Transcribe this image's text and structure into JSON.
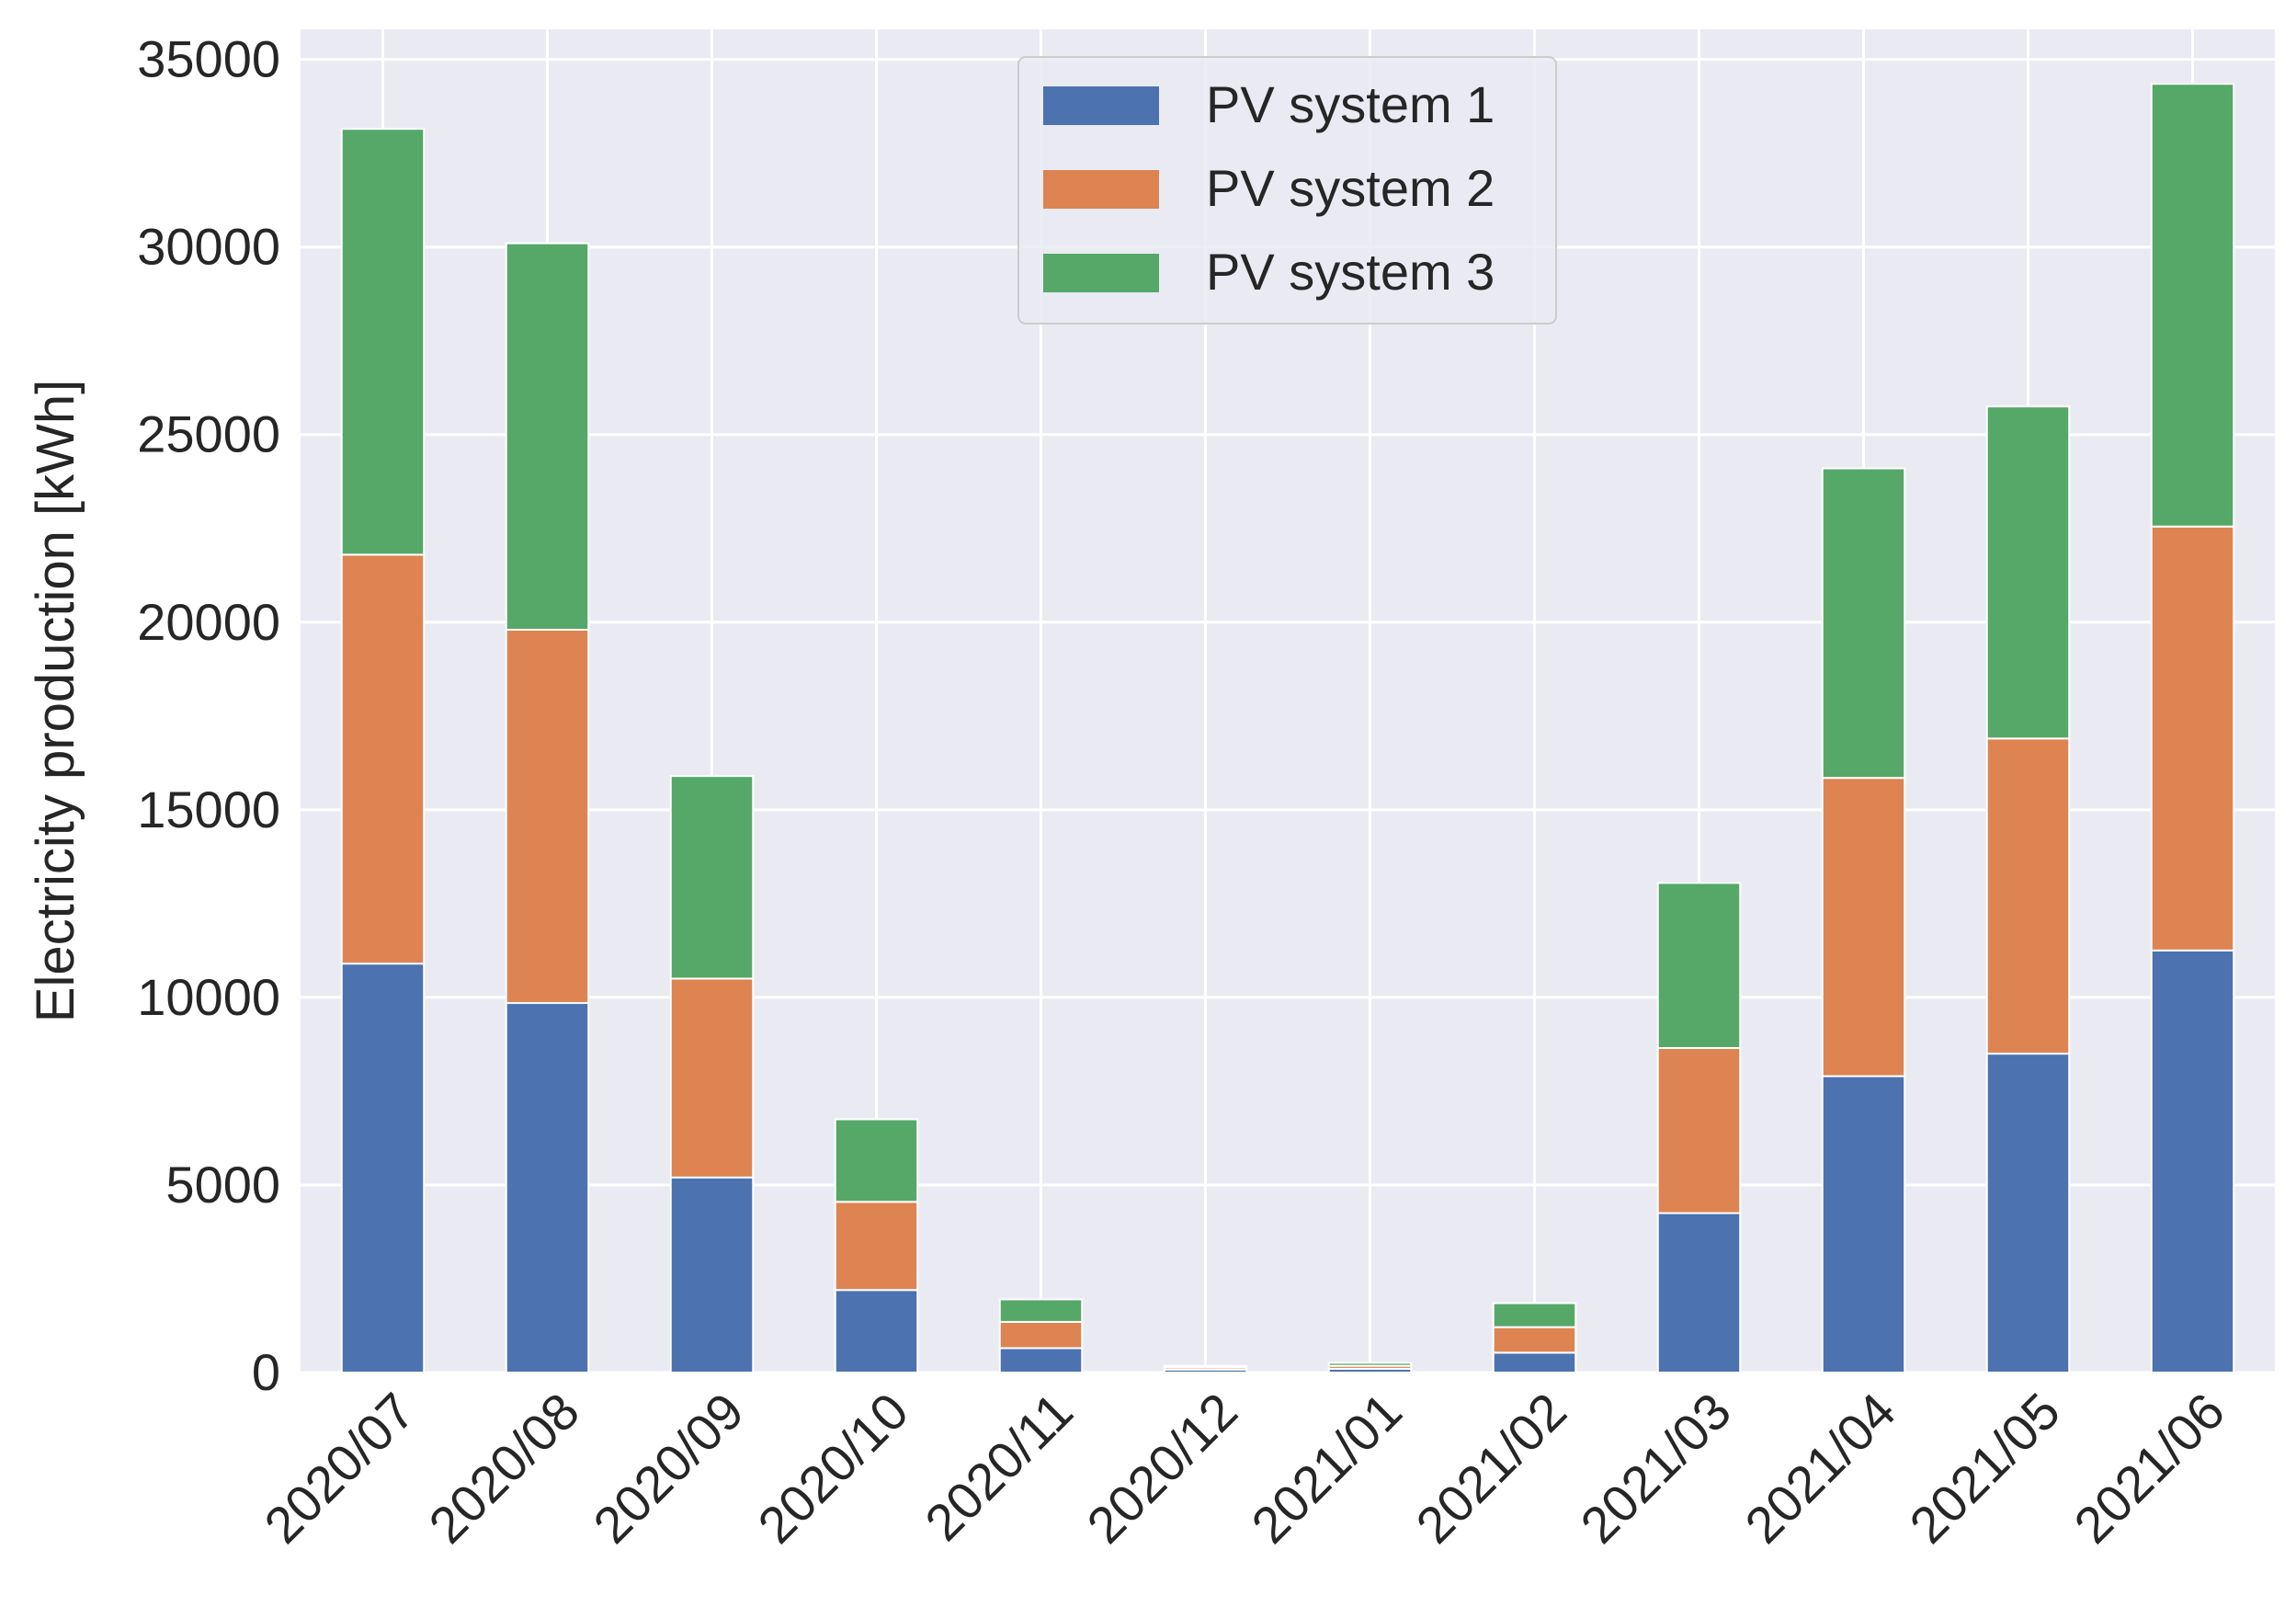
{
  "chart_data": {
    "type": "bar",
    "stacked": true,
    "title": "",
    "xlabel": "",
    "ylabel": "Electricity production [kWh]",
    "ylim": [
      0,
      35800
    ],
    "yticks": [
      0,
      5000,
      10000,
      15000,
      20000,
      25000,
      30000,
      35000
    ],
    "ytick_labels": [
      "0",
      "5000",
      "10000",
      "15000",
      "20000",
      "25000",
      "30000",
      "35000"
    ],
    "grid": true,
    "legend_position": "top-center",
    "categories": [
      "2020/07",
      "2020/08",
      "2020/09",
      "2020/10",
      "2020/11",
      "2020/12",
      "2021/01",
      "2021/02",
      "2021/03",
      "2021/04",
      "2021/05",
      "2021/06"
    ],
    "series": [
      {
        "name": "PV system 1",
        "color": "#4c72b0",
        "values": [
          10900,
          9850,
          5200,
          2200,
          650,
          80,
          100,
          530,
          4250,
          7900,
          8500,
          11250
        ]
      },
      {
        "name": "PV system 2",
        "color": "#dd8452",
        "values": [
          10900,
          9950,
          5300,
          2350,
          700,
          60,
          80,
          680,
          4400,
          7950,
          8400,
          11300
        ]
      },
      {
        "name": "PV system 3",
        "color": "#55a868",
        "values": [
          11350,
          10300,
          5400,
          2200,
          600,
          40,
          80,
          640,
          4400,
          8250,
          8850,
          11800
        ]
      }
    ],
    "colors": {
      "background": "#eaeaf2",
      "grid": "#ffffff",
      "text": "#262626"
    }
  }
}
